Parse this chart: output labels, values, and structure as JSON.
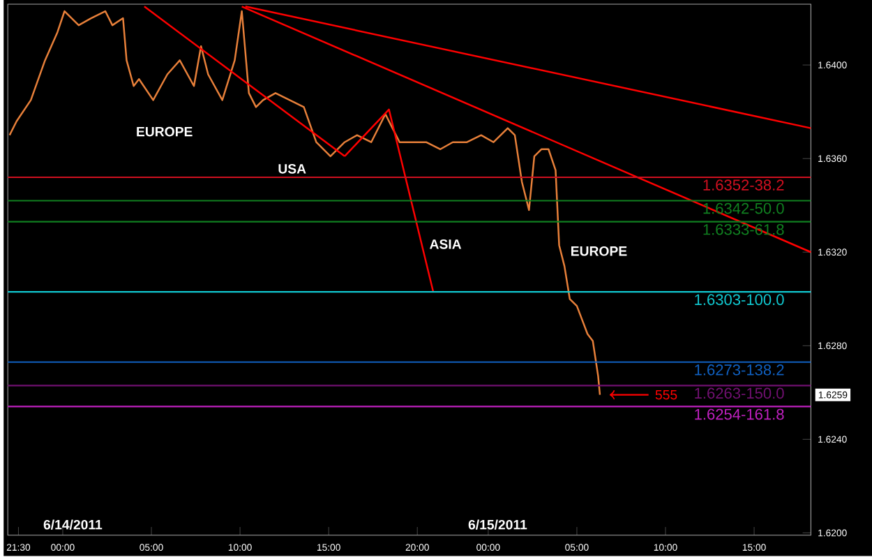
{
  "chart_data": {
    "type": "line",
    "xlim": [
      "2011-06-13T20:54",
      "2011-06-15T18:12"
    ],
    "ylim": [
      1.6199,
      1.6426
    ],
    "xticks": [
      {
        "value": "2011-06-13T21:30",
        "label": "21:30"
      },
      {
        "value": "2011-06-14T00:00",
        "label": "00:00"
      },
      {
        "value": "2011-06-14T05:00",
        "label": "05:00"
      },
      {
        "value": "2011-06-14T10:00",
        "label": "10:00"
      },
      {
        "value": "2011-06-14T15:00",
        "label": "15:00"
      },
      {
        "value": "2011-06-14T20:00",
        "label": "20:00"
      },
      {
        "value": "2011-06-15T00:00",
        "label": "00:00"
      },
      {
        "value": "2011-06-15T05:00",
        "label": "05:00"
      },
      {
        "value": "2011-06-15T10:00",
        "label": "10:00"
      },
      {
        "value": "2011-06-15T15:00",
        "label": "15:00"
      }
    ],
    "yticks": [
      {
        "value": 1.62,
        "label": "1.6200"
      },
      {
        "value": 1.624,
        "label": "1.6240"
      },
      {
        "value": 1.628,
        "label": "1.6280"
      },
      {
        "value": 1.632,
        "label": "1.6320"
      },
      {
        "value": 1.636,
        "label": "1.6360"
      },
      {
        "value": 1.64,
        "label": "1.6400"
      }
    ],
    "grid": false,
    "marker": "none",
    "line_style": "solid",
    "series": [
      {
        "color": "#e8803a",
        "x": [
          "2011-06-13T21:00",
          "2011-06-13T21:24",
          "2011-06-13T22:12",
          "2011-06-13T23:00",
          "2011-06-13T23:42",
          "2011-06-14T00:06",
          "2011-06-14T00:54",
          "2011-06-14T01:36",
          "2011-06-14T02:24",
          "2011-06-14T02:48",
          "2011-06-14T03:24",
          "2011-06-14T03:36",
          "2011-06-14T04:00",
          "2011-06-14T04:18",
          "2011-06-14T05:06",
          "2011-06-14T05:54",
          "2011-06-14T06:36",
          "2011-06-14T07:24",
          "2011-06-14T07:48",
          "2011-06-14T08:12",
          "2011-06-14T09:00",
          "2011-06-14T09:42",
          "2011-06-14T10:06",
          "2011-06-14T10:30",
          "2011-06-14T10:54",
          "2011-06-14T11:18",
          "2011-06-14T12:00",
          "2011-06-14T12:48",
          "2011-06-14T13:36",
          "2011-06-14T14:18",
          "2011-06-14T15:06",
          "2011-06-14T15:54",
          "2011-06-14T16:36",
          "2011-06-14T17:24",
          "2011-06-14T18:12",
          "2011-06-14T18:36",
          "2011-06-14T19:00",
          "2011-06-14T19:42",
          "2011-06-14T20:30",
          "2011-06-14T21:18",
          "2011-06-14T22:00",
          "2011-06-14T22:48",
          "2011-06-14T23:36",
          "2011-06-15T00:18",
          "2011-06-15T01:06",
          "2011-06-15T01:30",
          "2011-06-15T01:54",
          "2011-06-15T02:18",
          "2011-06-15T02:36",
          "2011-06-15T03:00",
          "2011-06-15T03:24",
          "2011-06-15T03:48",
          "2011-06-15T04:00",
          "2011-06-15T04:18",
          "2011-06-15T04:36",
          "2011-06-15T05:00",
          "2011-06-15T05:18",
          "2011-06-15T05:36",
          "2011-06-15T05:54",
          "2011-06-15T06:12",
          "2011-06-15T06:18"
        ],
        "values": [
          1.637,
          1.6376,
          1.6385,
          1.6402,
          1.6414,
          1.6423,
          1.6417,
          1.642,
          1.6423,
          1.6417,
          1.642,
          1.6402,
          1.6391,
          1.6394,
          1.6385,
          1.6396,
          1.6402,
          1.6391,
          1.6408,
          1.6396,
          1.6385,
          1.6402,
          1.6423,
          1.6388,
          1.6382,
          1.6385,
          1.6388,
          1.6385,
          1.6382,
          1.6367,
          1.6361,
          1.6367,
          1.637,
          1.6367,
          1.6379,
          1.6373,
          1.6367,
          1.6367,
          1.6367,
          1.6364,
          1.6367,
          1.6367,
          1.637,
          1.6367,
          1.6373,
          1.637,
          1.635,
          1.6338,
          1.6361,
          1.6364,
          1.6364,
          1.6355,
          1.6323,
          1.6314,
          1.63,
          1.6297,
          1.6291,
          1.6285,
          1.6282,
          1.6267,
          1.6259
        ]
      },
      {
        "type": "line",
        "color": "#ff0000",
        "x": [
          "2011-06-14T04:36",
          "2011-06-14T15:54"
        ],
        "values": [
          1.6425,
          1.6361
        ]
      },
      {
        "type": "line",
        "color": "#ff0000",
        "x": [
          "2011-06-14T15:54",
          "2011-06-14T18:24",
          "2011-06-14T20:54"
        ],
        "values": [
          1.6361,
          1.6381,
          1.6303
        ]
      },
      {
        "type": "line",
        "color": "#ff0000",
        "x": [
          "2011-06-14T10:06",
          "2011-06-15T18:12"
        ],
        "values": [
          1.6425,
          1.632
        ]
      },
      {
        "type": "line",
        "color": "#ff0000",
        "x": [
          "2011-06-14T10:18",
          "2011-06-15T18:12"
        ],
        "values": [
          1.6425,
          1.6373
        ]
      }
    ],
    "ref_lines": [
      {
        "axis": "y",
        "value": 1.6352,
        "label": "1.6352-38.2",
        "color": "#d01020"
      },
      {
        "axis": "y",
        "value": 1.6342,
        "label": "1.6342-50.0",
        "color": "#108020"
      },
      {
        "axis": "y",
        "value": 1.6333,
        "label": "1.6333-61.8",
        "color": "#108020"
      },
      {
        "axis": "y",
        "value": 1.6303,
        "label": "1.6303-100.0",
        "color": "#10c8d0"
      },
      {
        "axis": "y",
        "value": 1.6273,
        "label": "1.6273-138.2",
        "color": "#1060c0"
      },
      {
        "axis": "y",
        "value": 1.6263,
        "label": "1.6263-150.0",
        "color": "#701070"
      },
      {
        "axis": "y",
        "value": 1.6254,
        "label": "1.6254-161.8",
        "color": "#c020c0"
      }
    ],
    "annotations": [
      "EUROPE",
      "USA",
      "ASIA",
      "EUROPE",
      "555",
      "6/14/2011",
      "6/15/2011",
      "1.6259"
    ]
  }
}
